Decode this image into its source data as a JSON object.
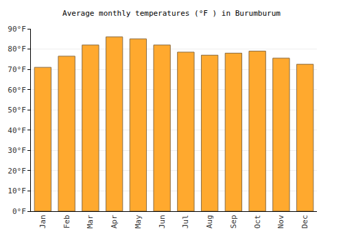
{
  "chart_data": {
    "type": "bar",
    "title": "Average monthly temperatures (°F ) in Burumburum",
    "categories": [
      "Jan",
      "Feb",
      "Mar",
      "Apr",
      "May",
      "Jun",
      "Jul",
      "Aug",
      "Sep",
      "Oct",
      "Nov",
      "Dec"
    ],
    "values": [
      71,
      76.5,
      82,
      86,
      85,
      82,
      78.5,
      77,
      78,
      79,
      75.5,
      72.5
    ],
    "color": "#ffa92e",
    "ylim": [
      0,
      90
    ],
    "yticks": [
      {
        "value": 0,
        "label": "0°F"
      },
      {
        "value": 10,
        "label": "10°F"
      },
      {
        "value": 20,
        "label": "20°F"
      },
      {
        "value": 30,
        "label": "30°F"
      },
      {
        "value": 40,
        "label": "40°F"
      },
      {
        "value": 50,
        "label": "50°F"
      },
      {
        "value": 60,
        "label": "60°F"
      },
      {
        "value": 70,
        "label": "70°F"
      },
      {
        "value": 80,
        "label": "80°F"
      },
      {
        "value": 90,
        "label": "90°F"
      }
    ],
    "grid": true
  }
}
